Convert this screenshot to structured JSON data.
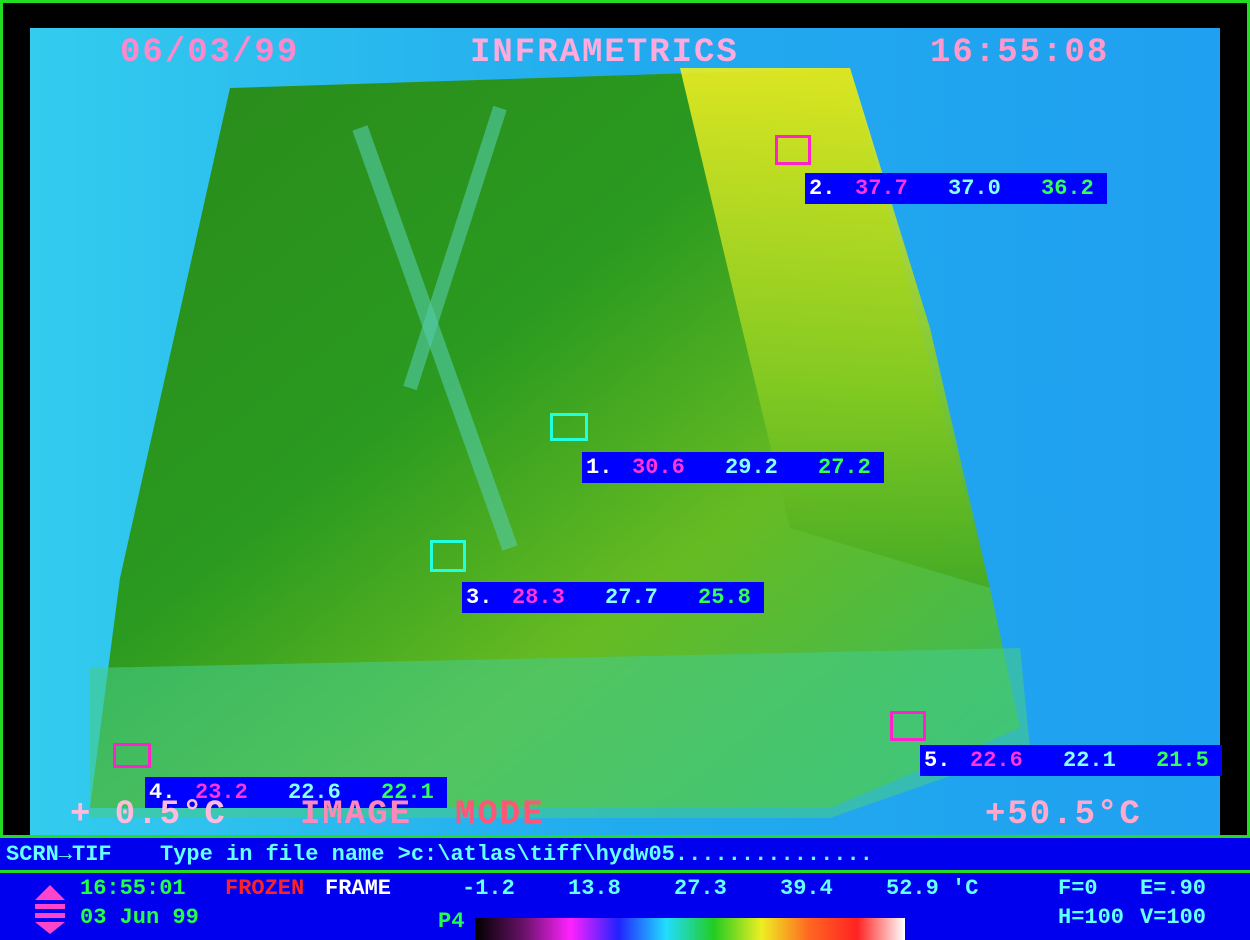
{
  "header": {
    "date": "06/03/99",
    "brand": "INFRAMETRICS",
    "time": "16:55:08"
  },
  "spots": [
    {
      "index": "2.",
      "values": [
        "37.7",
        "37.0",
        "36.2"
      ]
    },
    {
      "index": "1.",
      "values": [
        "30.6",
        "29.2",
        "27.2"
      ]
    },
    {
      "index": "3.",
      "values": [
        "28.3",
        "27.7",
        "25.8"
      ]
    },
    {
      "index": "5.",
      "values": [
        "22.6",
        "22.1",
        "21.5"
      ]
    },
    {
      "index": "4.",
      "values": [
        "23.2",
        "22.6",
        "22.1"
      ]
    }
  ],
  "status": {
    "low": "+ 0.5°C",
    "image": "IMAGE",
    "mode": "MODE",
    "high": "+50.5°C"
  },
  "command": {
    "label": "SCRN→TIF",
    "prompt": "Type in file name >c:\\atlas\\tiff\\hydw05..............."
  },
  "footer": {
    "time": "16:55:01",
    "date": "03 Jun 99",
    "frozen": "FROZEN",
    "frame": "FRAME",
    "scale": [
      "-1.2",
      "13.8",
      "27.3",
      "39.4",
      "52.9"
    ],
    "unit": "'C",
    "palette": "P4",
    "f": "F=0",
    "e": "E=.90",
    "h": "H=100",
    "v": "V=100"
  }
}
